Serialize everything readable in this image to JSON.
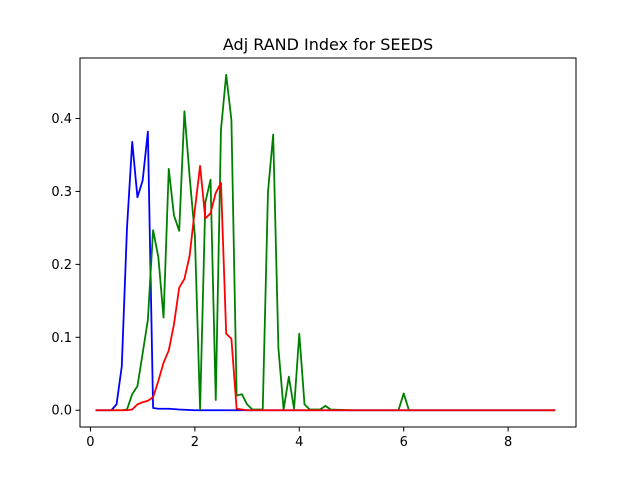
{
  "chart_data": {
    "type": "line",
    "title": "Adj RAND Index for SEEDS",
    "xlabel": "",
    "ylabel": "",
    "xlim": [
      -0.2,
      9.3
    ],
    "ylim": [
      -0.023,
      0.483
    ],
    "x_ticks": [
      0,
      2,
      4,
      6,
      8
    ],
    "x_tick_labels": [
      "0",
      "2",
      "4",
      "6",
      "8"
    ],
    "y_ticks": [
      0.0,
      0.1,
      0.2,
      0.3,
      0.4
    ],
    "y_tick_labels": [
      "0.0",
      "0.1",
      "0.2",
      "0.3",
      "0.4"
    ],
    "grid": false,
    "legend": false,
    "series": [
      {
        "color": "#0000ff",
        "x": [
          0.1,
          0.4,
          0.5,
          0.6,
          0.7,
          0.8,
          0.9,
          1.0,
          1.1,
          1.2,
          1.3,
          1.5,
          1.7,
          2.0,
          2.5,
          3.0,
          4.0,
          5.0,
          6.0,
          7.0,
          8.0,
          8.9
        ],
        "y": [
          0.0,
          0.0,
          0.008,
          0.06,
          0.25,
          0.368,
          0.292,
          0.315,
          0.382,
          0.003,
          0.002,
          0.002,
          0.001,
          0.0,
          0.0,
          0.0,
          0.0,
          0.0,
          0.0,
          0.0,
          0.0,
          0.0
        ]
      },
      {
        "color": "#008000",
        "x": [
          0.1,
          0.6,
          0.7,
          0.8,
          0.9,
          1.0,
          1.1,
          1.2,
          1.3,
          1.4,
          1.5,
          1.6,
          1.7,
          1.8,
          1.9,
          2.0,
          2.1,
          2.2,
          2.3,
          2.4,
          2.5,
          2.6,
          2.7,
          2.8,
          2.9,
          3.0,
          3.1,
          3.2,
          3.3,
          3.4,
          3.5,
          3.6,
          3.7,
          3.8,
          3.9,
          4.0,
          4.1,
          4.2,
          4.4,
          4.5,
          4.6,
          5.0,
          5.9,
          6.0,
          6.1,
          7.0,
          8.9
        ],
        "y": [
          0.0,
          0.0,
          0.001,
          0.022,
          0.033,
          0.078,
          0.124,
          0.247,
          0.21,
          0.127,
          0.331,
          0.267,
          0.246,
          0.41,
          0.32,
          0.24,
          0.001,
          0.285,
          0.316,
          0.014,
          0.385,
          0.46,
          0.398,
          0.02,
          0.022,
          0.008,
          0.001,
          0.001,
          0.001,
          0.299,
          0.378,
          0.085,
          0.001,
          0.046,
          0.002,
          0.105,
          0.008,
          0.001,
          0.001,
          0.006,
          0.001,
          0.0,
          0.0,
          0.023,
          0.0,
          0.0,
          0.0
        ]
      },
      {
        "color": "#ff0000",
        "x": [
          0.1,
          0.7,
          0.8,
          0.9,
          1.0,
          1.1,
          1.2,
          1.3,
          1.4,
          1.5,
          1.6,
          1.7,
          1.8,
          1.9,
          2.0,
          2.1,
          2.2,
          2.3,
          2.4,
          2.5,
          2.6,
          2.7,
          2.8,
          2.9,
          3.0,
          4.0,
          5.0,
          6.0,
          7.0,
          8.0,
          8.9
        ],
        "y": [
          0.0,
          0.0,
          0.001,
          0.008,
          0.011,
          0.013,
          0.018,
          0.04,
          0.065,
          0.082,
          0.118,
          0.168,
          0.18,
          0.212,
          0.275,
          0.335,
          0.263,
          0.27,
          0.298,
          0.312,
          0.105,
          0.098,
          0.002,
          0.001,
          0.0,
          0.0,
          0.0,
          0.0,
          0.0,
          0.0,
          0.0
        ]
      }
    ]
  }
}
